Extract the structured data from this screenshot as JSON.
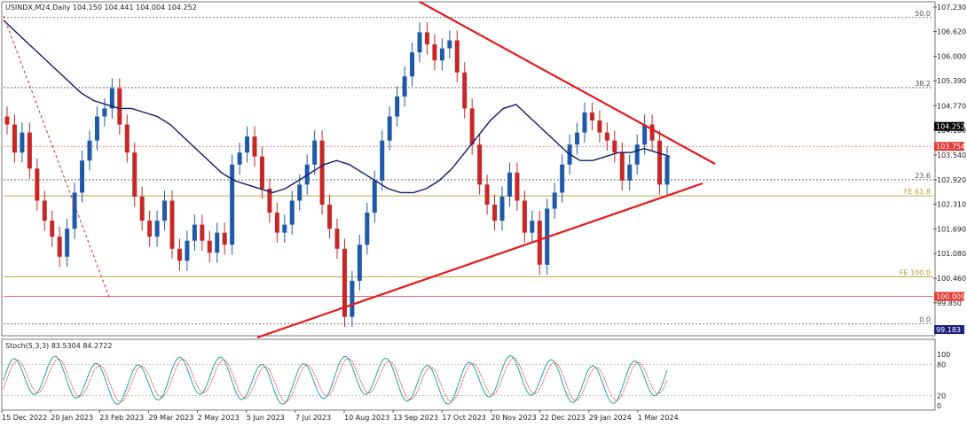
{
  "chart_data": [
    {
      "type": "candlestick",
      "header": "USINDX,M24,Daily  104.150 104.441 104.004 104.252",
      "ylim": [
        99.183,
        107.23
      ],
      "y_ticks": [
        "107.230",
        "106.620",
        "106.000",
        "105.390",
        "104.770",
        "104.160",
        "103.540",
        "102.920",
        "102.310",
        "101.690",
        "101.080",
        "100.460",
        "99.850"
      ],
      "x_labels": [
        "15 Dec 2022",
        "20 Jan 2023",
        "23 Feb 2023",
        "29 Mar 2023",
        "2 May 2023",
        "5 Jun 2023",
        "7 Jul 2023",
        "10 Aug 2023",
        "13 Sep 2023",
        "17 Oct 2023",
        "20 Nov 2023",
        "22 Dec 2023",
        "29 Jan 2024",
        "1 Mar 2024"
      ],
      "price_tags": [
        {
          "label": "104.252",
          "value": 104.252,
          "color": "#000000"
        },
        {
          "label": "103.754",
          "value": 103.754,
          "color": "#e53935"
        },
        {
          "label": "100.009",
          "value": 100.009,
          "color": "#e53935"
        },
        {
          "label": "99.183",
          "value": 99.183,
          "color": "#1a237e"
        }
      ],
      "levels": [
        {
          "label": "50.0",
          "value": 106.97,
          "color": "#555555",
          "dash": "2,2"
        },
        {
          "label": "38.2",
          "value": 105.22,
          "color": "#555555",
          "dash": "2,2"
        },
        {
          "label": "23.6",
          "value": 102.92,
          "color": "#555555",
          "dash": "2,2"
        },
        {
          "label": "FE 61.8",
          "value": 102.52,
          "color": "#b0a030",
          "dash": ""
        },
        {
          "label": "FE 100.0",
          "value": 100.5,
          "color": "#b0a030",
          "dash": ""
        },
        {
          "label": "0.0",
          "value": 99.33,
          "color": "#555555",
          "dash": "2,2"
        }
      ],
      "close_series": [
        104.3,
        103.6,
        104.1,
        103.2,
        102.4,
        101.9,
        101.5,
        101.0,
        101.7,
        102.6,
        103.4,
        103.9,
        104.5,
        104.7,
        105.2,
        104.3,
        103.6,
        102.5,
        101.9,
        101.5,
        101.9,
        102.4,
        101.2,
        100.9,
        101.4,
        101.8,
        101.4,
        101.1,
        101.6,
        101.3,
        103.3,
        103.6,
        104.0,
        103.5,
        102.7,
        102.1,
        101.6,
        101.8,
        102.4,
        102.8,
        103.3,
        103.9,
        102.3,
        101.7,
        101.2,
        99.5,
        100.4,
        101.3,
        102.1,
        102.9,
        103.9,
        104.5,
        105.0,
        105.5,
        106.1,
        106.6,
        106.3,
        105.9,
        106.2,
        106.4,
        105.6,
        104.7,
        103.8,
        102.8,
        102.3,
        101.9,
        102.5,
        103.1,
        102.4,
        101.6,
        101.9,
        100.8,
        102.2,
        102.6,
        103.3,
        103.8,
        104.1,
        104.6,
        104.4,
        104.1,
        103.9,
        103.6,
        102.9,
        103.3,
        103.8,
        104.3,
        103.9,
        102.8,
        103.5
      ],
      "ma_series": [
        106.9,
        106.6,
        106.3,
        106.0,
        105.7,
        105.4,
        105.1,
        104.9,
        104.8,
        104.7,
        104.7,
        104.6,
        104.5,
        104.3,
        104.0,
        103.7,
        103.4,
        103.1,
        102.9,
        102.8,
        102.7,
        102.6,
        102.7,
        102.9,
        103.1,
        103.3,
        103.4,
        103.3,
        103.1,
        102.9,
        102.7,
        102.6,
        102.6,
        102.7,
        102.9,
        103.2,
        103.6,
        104.0,
        104.4,
        104.7,
        104.8,
        104.5,
        104.2,
        103.9,
        103.6,
        103.4,
        103.4,
        103.5,
        103.6,
        103.6,
        103.7,
        103.6,
        103.5
      ],
      "stoch": {
        "label": "Stoch(5,3,3) 83.5304 84.2722",
        "ticks": [
          "100",
          "80",
          "20",
          "0"
        ],
        "levels": [
          80,
          20
        ]
      }
    }
  ]
}
